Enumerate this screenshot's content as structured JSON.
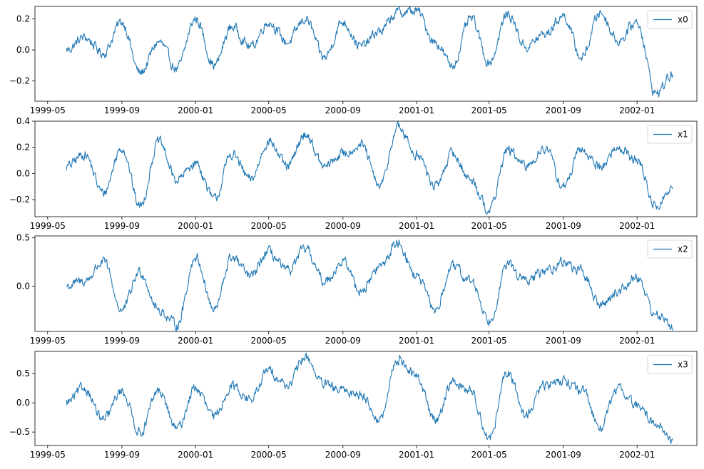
{
  "chart_data": [
    {
      "type": "line",
      "x_tick_labels": [
        "1999-05",
        "1999-09",
        "2000-01",
        "2000-05",
        "2000-09",
        "2001-01",
        "2001-05",
        "2001-09",
        "2002-01"
      ],
      "y_tick_labels": [
        "0.2",
        "0.0",
        "−0.2"
      ],
      "series": [
        {
          "name": "x0",
          "color": "#1f77b4",
          "x": [
            "1999-06-01",
            "1999-07-01",
            "1999-08-01",
            "1999-09-01",
            "1999-10-01",
            "1999-11-01",
            "1999-12-01",
            "2000-01-01",
            "2000-02-01",
            "2000-03-01",
            "2000-04-01",
            "2000-05-01",
            "2000-06-01",
            "2000-07-01",
            "2000-08-01",
            "2000-09-01",
            "2000-10-01",
            "2000-11-01",
            "2000-12-01",
            "2001-01-01",
            "2001-02-01",
            "2001-03-01",
            "2001-04-01",
            "2001-05-01",
            "2001-06-01",
            "2001-07-01",
            "2001-08-01",
            "2001-09-01",
            "2001-10-01",
            "2001-11-01",
            "2001-12-01",
            "2002-01-01",
            "2002-02-01",
            "2002-03-01"
          ],
          "values": [
            0.0,
            0.08,
            -0.02,
            0.18,
            -0.15,
            0.05,
            -0.12,
            0.2,
            -0.1,
            0.15,
            0.02,
            0.18,
            0.05,
            0.2,
            -0.05,
            0.18,
            0.02,
            0.12,
            0.24,
            0.25,
            0.05,
            -0.1,
            0.2,
            -0.08,
            0.23,
            0.02,
            0.1,
            0.22,
            -0.05,
            0.24,
            0.06,
            0.18,
            -0.28,
            -0.16
          ]
        }
      ]
    },
    {
      "type": "line",
      "x_tick_labels": [
        "1999-05",
        "1999-09",
        "2000-01",
        "2000-05",
        "2000-09",
        "2001-01",
        "2001-05",
        "2001-09",
        "2002-01"
      ],
      "y_tick_labels": [
        "0.4",
        "0.2",
        "0.0",
        "−0.2"
      ],
      "series": [
        {
          "name": "x1",
          "color": "#1f77b4",
          "x": [
            "1999-06-01",
            "1999-07-01",
            "1999-08-01",
            "1999-09-01",
            "1999-10-01",
            "1999-11-01",
            "1999-12-01",
            "2000-01-01",
            "2000-02-01",
            "2000-03-01",
            "2000-04-01",
            "2000-05-01",
            "2000-06-01",
            "2000-07-01",
            "2000-08-01",
            "2000-09-01",
            "2000-10-01",
            "2000-11-01",
            "2000-12-01",
            "2001-01-01",
            "2001-02-01",
            "2001-03-01",
            "2001-04-01",
            "2001-05-01",
            "2001-06-01",
            "2001-07-01",
            "2001-08-01",
            "2001-09-01",
            "2001-10-01",
            "2001-11-01",
            "2001-12-01",
            "2002-01-01",
            "2002-02-01",
            "2002-03-01"
          ],
          "values": [
            0.05,
            0.15,
            -0.15,
            0.2,
            -0.25,
            0.24,
            -0.05,
            0.08,
            -0.2,
            0.15,
            -0.05,
            0.25,
            0.05,
            0.3,
            0.05,
            0.15,
            0.22,
            -0.1,
            0.35,
            0.15,
            -0.1,
            0.15,
            -0.05,
            -0.28,
            0.18,
            0.05,
            0.2,
            -0.1,
            0.18,
            0.05,
            0.2,
            0.1,
            -0.25,
            -0.12
          ]
        }
      ]
    },
    {
      "type": "line",
      "x_tick_labels": [
        "1999-05",
        "1999-09",
        "2000-01",
        "2000-05",
        "2000-09",
        "2001-01",
        "2001-05",
        "2001-09",
        "2002-01"
      ],
      "y_tick_labels": [
        "0.5",
        "0.0"
      ],
      "series": [
        {
          "name": "x2",
          "color": "#1f77b4",
          "x": [
            "1999-06-01",
            "1999-07-01",
            "1999-08-01",
            "1999-09-01",
            "1999-10-01",
            "1999-11-01",
            "1999-12-01",
            "2000-01-01",
            "2000-02-01",
            "2000-03-01",
            "2000-04-01",
            "2000-05-01",
            "2000-06-01",
            "2000-07-01",
            "2000-08-01",
            "2000-09-01",
            "2000-10-01",
            "2000-11-01",
            "2000-12-01",
            "2001-01-01",
            "2001-02-01",
            "2001-03-01",
            "2001-04-01",
            "2001-05-01",
            "2001-06-01",
            "2001-07-01",
            "2001-08-01",
            "2001-09-01",
            "2001-10-01",
            "2001-11-01",
            "2001-12-01",
            "2002-01-01",
            "2002-02-01",
            "2002-03-01"
          ],
          "values": [
            0.0,
            0.05,
            0.25,
            -0.25,
            0.15,
            -0.25,
            -0.4,
            0.3,
            -0.25,
            0.3,
            0.1,
            0.35,
            0.15,
            0.38,
            0.05,
            0.25,
            -0.05,
            0.2,
            0.45,
            0.1,
            -0.25,
            0.2,
            0.05,
            -0.35,
            0.22,
            0.05,
            0.15,
            0.25,
            0.15,
            -0.2,
            -0.05,
            0.1,
            -0.3,
            -0.4
          ]
        }
      ]
    },
    {
      "type": "line",
      "x_tick_labels": [
        "1999-05",
        "1999-09",
        "2000-01",
        "2000-05",
        "2000-09",
        "2001-01",
        "2001-05",
        "2001-09",
        "2002-01"
      ],
      "y_tick_labels": [
        "0.5",
        "0.0",
        "−0.5"
      ],
      "series": [
        {
          "name": "x3",
          "color": "#1f77b4",
          "x": [
            "1999-06-01",
            "1999-07-01",
            "1999-08-01",
            "1999-09-01",
            "1999-10-01",
            "1999-11-01",
            "1999-12-01",
            "2000-01-01",
            "2000-02-01",
            "2000-03-01",
            "2000-04-01",
            "2000-05-01",
            "2000-06-01",
            "2000-07-01",
            "2000-08-01",
            "2000-09-01",
            "2000-10-01",
            "2000-11-01",
            "2000-12-01",
            "2001-01-01",
            "2001-02-01",
            "2001-03-01",
            "2001-04-01",
            "2001-05-01",
            "2001-06-01",
            "2001-07-01",
            "2001-08-01",
            "2001-09-01",
            "2001-10-01",
            "2001-11-01",
            "2001-12-01",
            "2002-01-01",
            "2002-02-01",
            "2002-03-01"
          ],
          "values": [
            0.0,
            0.25,
            -0.3,
            0.2,
            -0.5,
            0.2,
            -0.45,
            0.25,
            -0.25,
            0.3,
            0.05,
            0.55,
            0.3,
            0.78,
            0.3,
            0.2,
            0.15,
            -0.3,
            0.75,
            0.45,
            -0.3,
            0.35,
            0.2,
            -0.6,
            0.5,
            -0.2,
            0.3,
            0.4,
            0.2,
            -0.4,
            0.25,
            -0.05,
            -0.35,
            -0.65
          ]
        }
      ]
    }
  ]
}
